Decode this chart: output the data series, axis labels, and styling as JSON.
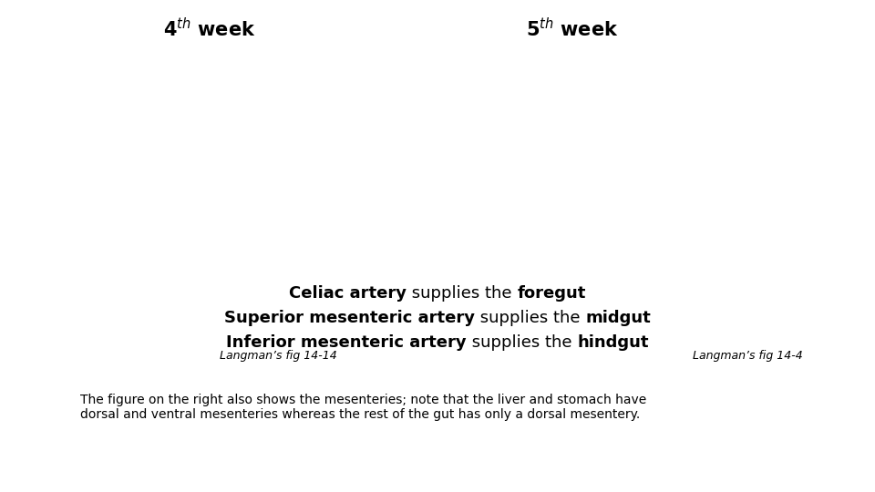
{
  "background_color": "#ffffff",
  "title_4th": "4",
  "title_4th_sup": "th",
  "title_4th_rest": " week",
  "title_5th": "5",
  "title_5th_sup": "th",
  "title_5th_rest": " week",
  "title_fontsize": 15,
  "caption_left": "Langman’s fig 14-14",
  "caption_right": "Langman’s fig 14-4",
  "caption_fontsize": 9,
  "line1_bold1": "Celiac artery",
  "line1_norm": " supplies the ",
  "line1_bold2": "foregut",
  "line2_bold1": "Superior mesenteric artery",
  "line2_norm": " supplies the ",
  "line2_bold2": "midgut",
  "line3_bold1": "Inferior mesenteric artery",
  "line3_norm": " supplies the ",
  "line3_bold2": "hindgut",
  "text_fontsize": 13,
  "footer_line1": "The figure on the right also shows the mesenteries; note that the liver and stomach have",
  "footer_line2": "dorsal and ventral mesenteries whereas the rest of the gut has only a dorsal mesentery.",
  "footer_fontsize": 10,
  "fig_width": 9.6,
  "fig_height": 5.4,
  "dpi": 100
}
